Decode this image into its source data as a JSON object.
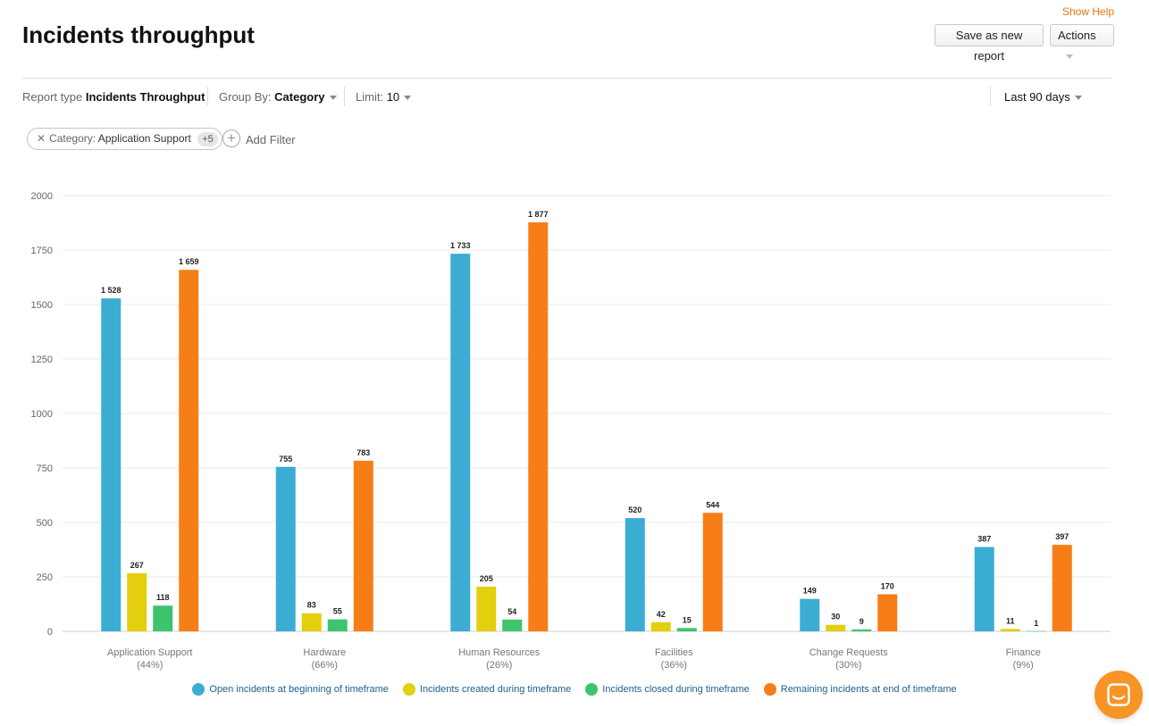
{
  "header": {
    "title": "Incidents throughput",
    "show_help": "Show Help",
    "save_label": "Save as new report",
    "actions_label": "Actions"
  },
  "toolbar": {
    "report_type_label": "Report type",
    "report_type_value": "Incidents Throughput",
    "group_by_label": "Group By:",
    "group_by_value": "Category",
    "limit_label": "Limit:",
    "limit_value": "10",
    "timeframe": "Last 90 days"
  },
  "filters": {
    "pill_key": "Category:",
    "pill_value": "Application Support",
    "pill_more": "+5",
    "add_label": "Add Filter"
  },
  "chart_data": {
    "type": "bar",
    "categories": [
      "Application Support",
      "Hardware",
      "Human Resources",
      "Facilities",
      "Change Requests",
      "Finance"
    ],
    "category_sublabels": [
      "(44%)",
      "(66%)",
      "(26%)",
      "(36%)",
      "(30%)",
      "(9%)"
    ],
    "series": [
      {
        "name": "Open incidents at beginning of timeframe",
        "color": "#3badd3",
        "values": [
          1528,
          755,
          1733,
          520,
          149,
          387
        ],
        "labels": [
          "1 528",
          "755",
          "1 733",
          "520",
          "149",
          "387"
        ]
      },
      {
        "name": "Incidents created during timeframe",
        "color": "#e3cf0e",
        "values": [
          267,
          83,
          205,
          42,
          30,
          11
        ],
        "labels": [
          "267",
          "83",
          "205",
          "42",
          "30",
          "11"
        ]
      },
      {
        "name": "Incidents closed during timeframe",
        "color": "#3ec46d",
        "values": [
          118,
          55,
          54,
          15,
          9,
          1
        ],
        "labels": [
          "118",
          "55",
          "54",
          "15",
          "9",
          "1"
        ]
      },
      {
        "name": "Remaining incidents at end of timeframe",
        "color": "#f77e16",
        "values": [
          1659,
          783,
          1877,
          544,
          170,
          397
        ],
        "labels": [
          "1 659",
          "783",
          "1 877",
          "544",
          "170",
          "397"
        ]
      }
    ],
    "ylim": [
      0,
      2000
    ],
    "yticks": [
      0,
      250,
      500,
      750,
      1000,
      1250,
      1500,
      1750,
      2000
    ],
    "grid": true,
    "legend_position": "bottom"
  }
}
